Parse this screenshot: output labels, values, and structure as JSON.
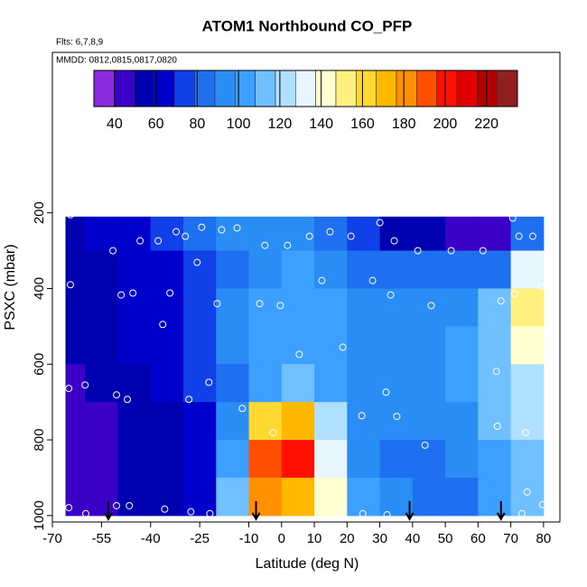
{
  "chart_data": {
    "type": "heatmap",
    "title": "ATOM1 Northbound CO_PFP",
    "subtitle": "Flts: 6,7,8,9",
    "annotation": "MMDD: 0812,0815,0817,0820",
    "x_label": "Latitude (deg N)",
    "y_label": "PSXC (mbar)",
    "xlim": [
      -70,
      85
    ],
    "xticks": [
      -70,
      -55,
      -40,
      -25,
      -10,
      0,
      10,
      20,
      30,
      40,
      50,
      60,
      70,
      80
    ],
    "ylim": [
      1017,
      -224
    ],
    "yticks": [
      200,
      400,
      600,
      800,
      1000
    ],
    "lat_edges": [
      -66,
      -60,
      -50,
      -40,
      -30,
      -20,
      -10,
      0,
      10,
      20,
      30,
      40,
      50,
      60,
      70,
      80
    ],
    "pressure_edges": [
      210,
      300,
      400,
      500,
      600,
      700,
      800,
      900,
      1000
    ],
    "z": [
      [
        55,
        60,
        62,
        70,
        85,
        95,
        90,
        95,
        85,
        70,
        50,
        50,
        45,
        40,
        80
      ],
      [
        55,
        58,
        60,
        65,
        70,
        85,
        95,
        100,
        95,
        85,
        80,
        85,
        80,
        80,
        130
      ],
      [
        55,
        58,
        62,
        65,
        75,
        90,
        100,
        100,
        100,
        95,
        90,
        90,
        95,
        110,
        150
      ],
      [
        50,
        55,
        60,
        65,
        75,
        90,
        100,
        105,
        100,
        95,
        95,
        95,
        100,
        110,
        140
      ],
      [
        48,
        50,
        55,
        60,
        70,
        85,
        105,
        115,
        105,
        95,
        90,
        95,
        100,
        115,
        125
      ],
      [
        45,
        48,
        50,
        55,
        65,
        90,
        160,
        170,
        120,
        95,
        90,
        90,
        95,
        110,
        120
      ],
      [
        45,
        48,
        50,
        52,
        60,
        100,
        190,
        200,
        130,
        95,
        85,
        85,
        90,
        105,
        115
      ],
      [
        45,
        48,
        50,
        52,
        60,
        110,
        180,
        170,
        140,
        100,
        90,
        85,
        85,
        100,
        110
      ]
    ],
    "colorbar": {
      "lim": [
        30,
        235
      ],
      "ticks": [
        40,
        60,
        80,
        100,
        120,
        140,
        160,
        180,
        200,
        220
      ],
      "colors": [
        "#8a2be2",
        "#3a00c8",
        "#0000b0",
        "#0000cd",
        "#1040e8",
        "#1e70f0",
        "#2a8cf5",
        "#3ca0ff",
        "#70c0ff",
        "#b0e0ff",
        "#e8f6ff",
        "#ffffd0",
        "#fff080",
        "#ffd830",
        "#ffb800",
        "#ff9000",
        "#ff5000",
        "#ff1000",
        "#e00000",
        "#b00000",
        "#902020"
      ]
    },
    "samples": {
      "lat": [
        -64.5,
        -32.2,
        -29.4,
        -24.4,
        -18.3,
        -13.6,
        -5.1,
        1.8,
        8.5,
        14.8,
        21.2,
        30,
        34.4,
        41.6,
        51.8,
        61.5,
        70.6,
        72.5,
        76.7,
        -51.5,
        -43.2,
        -37.7,
        -25.8,
        -64.5,
        -49,
        -45.4,
        -34.1,
        -36.3,
        -19.7,
        -6.7,
        -0.4,
        12.3,
        27.8,
        33.3,
        45.7,
        67,
        71.2,
        79.2,
        5.4,
        18.7,
        65.6,
        -65,
        -60,
        -50.4,
        -47.1,
        -28.3,
        -22.2,
        -12,
        24.5,
        31.9,
        35.2,
        -2.6,
        43.8,
        65.9,
        74.5,
        75,
        -65,
        -59.8,
        -50.4,
        -46.5,
        -35.7,
        -27.7,
        -21.9,
        17.8,
        24.8,
        32.2,
        73.4,
        79.7
      ],
      "pressure": [
        205,
        250,
        262,
        238,
        245,
        240,
        286,
        286,
        262,
        250,
        262,
        226,
        274,
        300,
        300,
        300,
        214,
        262,
        262,
        300,
        274,
        274,
        331,
        390,
        417,
        412,
        412,
        495,
        440,
        440,
        445,
        379,
        379,
        417,
        445,
        433,
        414,
        395,
        574,
        555,
        619,
        664,
        655,
        681,
        693,
        693,
        648,
        717,
        736,
        674,
        738,
        781,
        814,
        764,
        781,
        938,
        979,
        995,
        974,
        974,
        983,
        990,
        995,
        990,
        995,
        998,
        995,
        971
      ]
    },
    "arrows_lat": [
      -52.9,
      -7.8,
      39.1,
      67
    ]
  }
}
